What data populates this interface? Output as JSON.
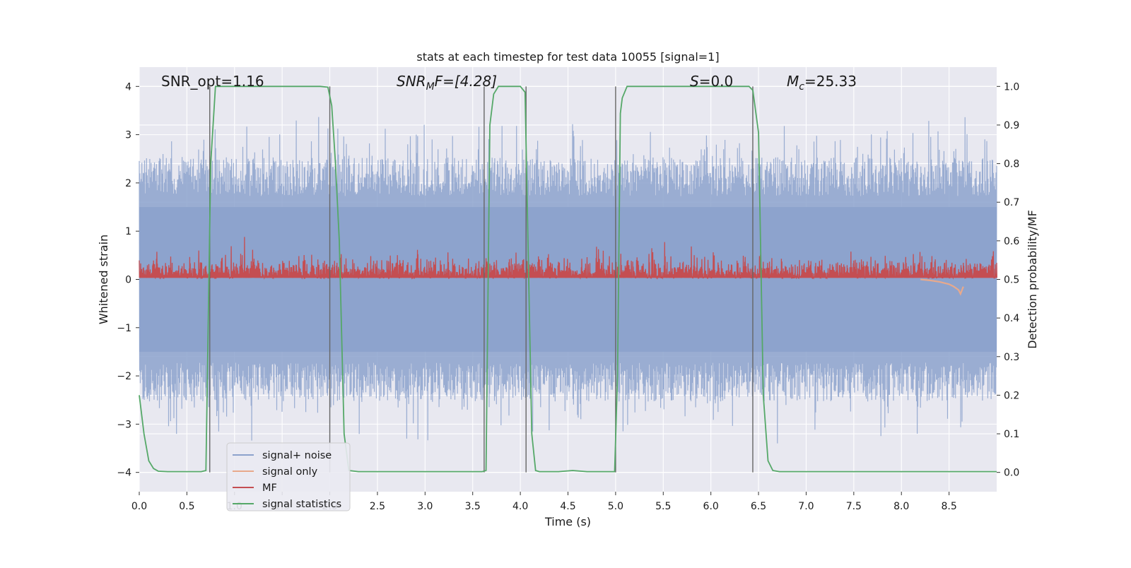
{
  "chart_data": {
    "type": "line",
    "title": "stats at each timestep for test data 10055 [signal=1]",
    "xlabel": "Time (s)",
    "ylabel_left": "Whitened strain",
    "ylabel_right": "Detection probability/MF",
    "xlim": [
      0.0,
      9.0
    ],
    "ylim_left": [
      -4.4,
      4.4
    ],
    "ylim_right": [
      -0.05,
      1.05
    ],
    "xticks": [
      "0.0",
      "0.5",
      "1.0",
      "1.5",
      "2.0",
      "2.5",
      "3.0",
      "3.5",
      "4.0",
      "4.5",
      "5.0",
      "5.5",
      "6.0",
      "6.5",
      "7.0",
      "7.5",
      "8.0",
      "8.5"
    ],
    "yticks_left": [
      "−4",
      "−3",
      "−2",
      "−1",
      "0",
      "1",
      "2",
      "3",
      "4"
    ],
    "yticks_right": [
      "0.0",
      "0.1",
      "0.2",
      "0.3",
      "0.4",
      "0.5",
      "0.6",
      "0.7",
      "0.8",
      "0.9",
      "1.0"
    ],
    "grid": true,
    "legend_position": "lower-left",
    "annotations": {
      "snr_opt": "SNR_opt=1.16",
      "snr_mf_base": "SNR",
      "snr_mf_sub": "M",
      "snr_mf_rest": "F=[4.28]",
      "s_name": "S",
      "s_value": "=0.0",
      "mc_base": "M",
      "mc_sub": "c",
      "mc_value": "=25.33"
    },
    "series": [
      {
        "name": "signal+ noise",
        "color": "#8ca2cc",
        "axis": "left",
        "description_values": {
          "band_min": -3.9,
          "band_max": 3.5,
          "typical_envelope": 2.3
        }
      },
      {
        "name": "signal only",
        "color": "#e8a98c",
        "axis": "left",
        "x": [
          8.2,
          8.3,
          8.4,
          8.5,
          8.55,
          8.6,
          8.62,
          8.65
        ],
        "y": [
          0.0,
          -0.02,
          -0.05,
          -0.1,
          -0.15,
          -0.22,
          -0.3,
          -0.15
        ]
      },
      {
        "name": "MF",
        "color": "#c44e52",
        "axis": "right",
        "description_values": {
          "baseline": 0.5,
          "typical_peak": 0.57,
          "max_peak": 0.61
        }
      },
      {
        "name": "signal statistics",
        "color": "#55a868",
        "axis": "right",
        "x": [
          0.0,
          0.05,
          0.1,
          0.15,
          0.2,
          0.3,
          0.5,
          0.65,
          0.7,
          0.75,
          0.8,
          1.0,
          1.5,
          1.9,
          1.98,
          2.02,
          2.06,
          2.1,
          2.15,
          2.2,
          2.3,
          2.6,
          3.2,
          3.6,
          3.64,
          3.68,
          3.72,
          3.77,
          3.9,
          4.0,
          4.05,
          4.08,
          4.12,
          4.16,
          4.2,
          4.4,
          4.55,
          4.7,
          4.99,
          5.02,
          5.05,
          5.07,
          5.12,
          5.5,
          6.0,
          6.4,
          6.44,
          6.5,
          6.55,
          6.6,
          6.65,
          6.72,
          7.0,
          8.0,
          9.0
        ],
        "y": [
          0.2,
          0.1,
          0.03,
          0.01,
          0.003,
          0.002,
          0.002,
          0.002,
          0.005,
          0.8,
          1.0,
          1.0,
          1.0,
          1.0,
          0.998,
          0.95,
          0.8,
          0.6,
          0.1,
          0.005,
          0.002,
          0.002,
          0.002,
          0.002,
          0.005,
          0.9,
          0.98,
          1.0,
          1.0,
          1.0,
          0.985,
          0.6,
          0.1,
          0.005,
          0.002,
          0.002,
          0.005,
          0.002,
          0.002,
          0.25,
          0.93,
          0.97,
          1.0,
          1.0,
          1.0,
          1.0,
          0.99,
          0.88,
          0.2,
          0.03,
          0.005,
          0.002,
          0.002,
          0.002,
          0.002
        ]
      }
    ],
    "vertical_markers": [
      0.74,
      2.0,
      3.62,
      4.06,
      5.0,
      6.44
    ],
    "colors": {
      "plot_background": "#e8e8f0",
      "grid": "#ffffff",
      "markers": "#666666"
    }
  }
}
